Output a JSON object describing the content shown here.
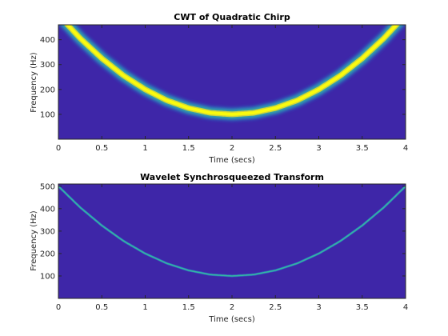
{
  "chart_data": [
    {
      "type": "heatmap",
      "title": "CWT of Quadratic Chirp",
      "xlabel": "Time (secs)",
      "ylabel": "Frequency (Hz)",
      "xlim": [
        0,
        4
      ],
      "ylim": [
        0,
        460
      ],
      "xticks": [
        0,
        0.5,
        1,
        1.5,
        2,
        2.5,
        3,
        3.5,
        4
      ],
      "xtick_labels": [
        "0",
        "0.5",
        "1",
        "1.5",
        "2",
        "2.5",
        "3",
        "3.5",
        "4"
      ],
      "yticks": [
        100,
        200,
        300,
        400
      ],
      "ytick_labels": [
        "100",
        "200",
        "300",
        "400"
      ],
      "ridge": {
        "description": "quadratic chirp f(t) = 100 + 100*(t-2)^2",
        "x": [
          0,
          0.25,
          0.5,
          0.75,
          1,
          1.25,
          1.5,
          1.75,
          2,
          2.25,
          2.5,
          2.75,
          3,
          3.25,
          3.5,
          3.75,
          4
        ],
        "y": [
          500,
          406,
          325,
          256,
          200,
          156,
          125,
          106,
          100,
          106,
          125,
          156,
          200,
          256,
          325,
          406,
          500
        ]
      },
      "colors": {
        "background": "#3e26a8",
        "ridge": "#f9fb0e"
      }
    },
    {
      "type": "heatmap",
      "title": "Wavelet Synchrosqueezed Transform",
      "xlabel": "Time (secs)",
      "ylabel": "Frequency (Hz)",
      "xlim": [
        0,
        4
      ],
      "ylim": [
        0,
        510
      ],
      "xticks": [
        0,
        0.5,
        1,
        1.5,
        2,
        2.5,
        3,
        3.5,
        4
      ],
      "xtick_labels": [
        "0",
        "0.5",
        "1",
        "1.5",
        "2",
        "2.5",
        "3",
        "3.5",
        "4"
      ],
      "yticks": [
        100,
        200,
        300,
        400,
        500
      ],
      "ytick_labels": [
        "100",
        "200",
        "300",
        "400",
        "500"
      ],
      "ridge": {
        "description": "quadratic chirp f(t) = 100 + 100*(t-2)^2",
        "x": [
          0,
          0.25,
          0.5,
          0.75,
          1,
          1.25,
          1.5,
          1.75,
          2,
          2.25,
          2.5,
          2.75,
          3,
          3.25,
          3.5,
          3.75,
          4
        ],
        "y": [
          500,
          406,
          325,
          256,
          200,
          156,
          125,
          106,
          100,
          106,
          125,
          156,
          200,
          256,
          325,
          406,
          500
        ]
      },
      "colors": {
        "background": "#3e26a8",
        "ridge": "#33b7a0"
      }
    }
  ]
}
